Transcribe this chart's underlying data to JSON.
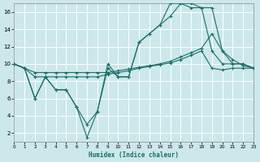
{
  "xlabel": "Humidex (Indice chaleur)",
  "bg_color": "#cce8ea",
  "grid_color": "#b0d0d4",
  "line_color": "#1a6e68",
  "xlim": [
    0,
    23
  ],
  "ylim": [
    1,
    17
  ],
  "xtick_vals": [
    0,
    1,
    2,
    3,
    4,
    5,
    6,
    7,
    8,
    9,
    10,
    11,
    12,
    13,
    14,
    15,
    16,
    17,
    18,
    19,
    20,
    21,
    22,
    23
  ],
  "ytick_vals": [
    2,
    4,
    6,
    8,
    10,
    12,
    14,
    16
  ],
  "line1_x": [
    0,
    1,
    2,
    3,
    4,
    5,
    6,
    7,
    8,
    9,
    10,
    11,
    12,
    13,
    14,
    15,
    16,
    17,
    18,
    19,
    20,
    21,
    22,
    23
  ],
  "line1_y": [
    10,
    9.5,
    6,
    8.5,
    7,
    7,
    5,
    3,
    4.5,
    10,
    8.5,
    8.5,
    12.5,
    13.5,
    14.5,
    15.5,
    17,
    17,
    16.5,
    16.5,
    11.5,
    10,
    10,
    9.5
  ],
  "line2_x": [
    0,
    1,
    2,
    3,
    4,
    5,
    6,
    7,
    8,
    9,
    10,
    11,
    12,
    13,
    14,
    15,
    16,
    17,
    18,
    19,
    20,
    21,
    22,
    23
  ],
  "line2_y": [
    10,
    9.5,
    6,
    8.5,
    7,
    7,
    5,
    1.5,
    4.5,
    9.5,
    8.5,
    8.5,
    12.5,
    13.5,
    14.5,
    17,
    17,
    16.5,
    16.5,
    11.5,
    10,
    10,
    10,
    9.5
  ],
  "line3_x": [
    0,
    1,
    2,
    3,
    4,
    5,
    6,
    7,
    8,
    9,
    10,
    11,
    12,
    13,
    14,
    15,
    16,
    17,
    18,
    19,
    20,
    21,
    22,
    23
  ],
  "line3_y": [
    10,
    9.5,
    9,
    9,
    9,
    9,
    9,
    9,
    9,
    9,
    9.2,
    9.4,
    9.6,
    9.8,
    10.0,
    10.3,
    10.8,
    11.3,
    11.8,
    13.5,
    11.5,
    10.5,
    9.8,
    9.5
  ],
  "line4_x": [
    0,
    1,
    2,
    3,
    4,
    5,
    6,
    7,
    8,
    9,
    10,
    11,
    12,
    13,
    14,
    15,
    16,
    17,
    18,
    19,
    20,
    21,
    22,
    23
  ],
  "line4_y": [
    10,
    9.5,
    8.5,
    8.5,
    8.5,
    8.5,
    8.5,
    8.5,
    8.5,
    8.8,
    9.0,
    9.2,
    9.5,
    9.7,
    9.9,
    10.1,
    10.5,
    11.0,
    11.5,
    9.5,
    9.3,
    9.5,
    9.5,
    9.5
  ]
}
